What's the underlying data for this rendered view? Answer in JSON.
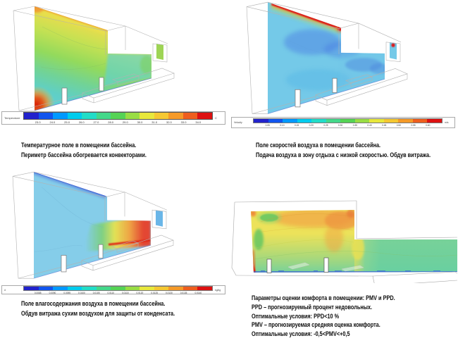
{
  "figure": {
    "description_domain": "CFD simulation figures of a swimming pool hall",
    "background": "#ffffff"
  },
  "panels": [
    {
      "id": "temperature",
      "caption_lines": [
        "Температурное поле в помещении бассейна.",
        "Периметр бассейна обогревается конвекторами."
      ],
      "legend": {
        "label": "Temperature",
        "unit": "C",
        "colors": [
          "#2222cc",
          "#1155ee",
          "#0099ff",
          "#00ccee",
          "#22ddc8",
          "#44d88a",
          "#55d355",
          "#99dd44",
          "#e8e83c",
          "#f5c832",
          "#f59a28",
          "#ee5e1e",
          "#dd1111"
        ],
        "ticks": [
          "23.0",
          "24.0",
          "25.0",
          "26.0",
          "27.0",
          "28.0",
          "29.0",
          "30.0",
          "31.0",
          "32.0",
          "33.0",
          "34.0"
        ]
      }
    },
    {
      "id": "velocity",
      "caption_lines": [
        "Поле скоростей воздуха в помещении бассейна.",
        "Подача воздуха в зону отдыха с низкой скоростью. Обдув витража."
      ],
      "legend": {
        "label": "Velocity",
        "unit": "m/s",
        "colors": [
          "#2222cc",
          "#1155ee",
          "#0099ff",
          "#00ccee",
          "#22ddc8",
          "#44d88a",
          "#55d355",
          "#99dd44",
          "#e8e83c",
          "#f5c832",
          "#f59a28",
          "#ee5e1e",
          "#dd1111"
        ],
        "ticks": [
          "0.05",
          "0.10",
          "0.15",
          "0.20",
          "0.25",
          "0.30",
          "0.35",
          "0.40",
          "0.45",
          "0.50",
          "0.55",
          "0.60"
        ]
      }
    },
    {
      "id": "moisture",
      "caption_lines": [
        "Поле влагосодержания воздуха в помещении бассейна.",
        "Обдув витража сухим воздухом для защиты от конденсата."
      ],
      "legend": {
        "label": "d",
        "unit": "kg/kg",
        "colors": [
          "#2222cc",
          "#1155ee",
          "#0099ff",
          "#00ccee",
          "#22ddc8",
          "#44d88a",
          "#55d355",
          "#99dd44",
          "#e8e83c",
          "#f5c832",
          "#f59a28",
          "#ee5e1e",
          "#dd1111"
        ],
        "ticks": [
          "0.0085",
          "0.0090",
          "0.0095",
          "0.0100",
          "0.0105",
          "0.0110",
          "0.0115",
          "0.0120",
          "0.0125",
          "0.0130",
          "0.0135",
          "0.0140"
        ]
      }
    },
    {
      "id": "comfort",
      "caption_lines": [
        "Параметры оценки комфорта в помещении: PMV и PPD.",
        "PPD – прогнозируемый процент недовольных.",
        "Оптимальные условия: PPD<10 %",
        "PMV – прогнозируемая средняя оценка комфорта.",
        "Оптимальные условия: -0,5<PMV<+0,5"
      ],
      "legend": null
    }
  ]
}
